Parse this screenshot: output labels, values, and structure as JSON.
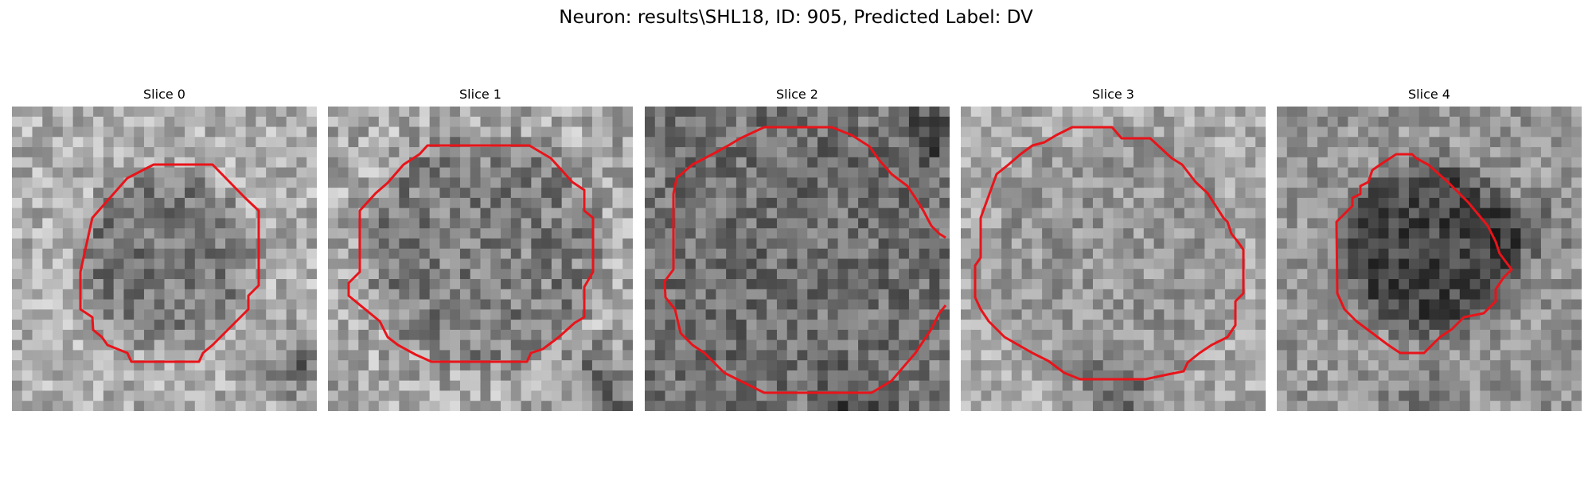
{
  "figure": {
    "title": "Neuron: results\\SHL18, ID: 905, Predicted Label: DV"
  },
  "slices": [
    {
      "title": "Slice 0"
    },
    {
      "title": "Slice 1"
    },
    {
      "title": "Slice 2"
    },
    {
      "title": "Slice 3"
    },
    {
      "title": "Slice 4"
    }
  ],
  "colors": {
    "contour": "#e8141a",
    "background": "#ffffff"
  }
}
